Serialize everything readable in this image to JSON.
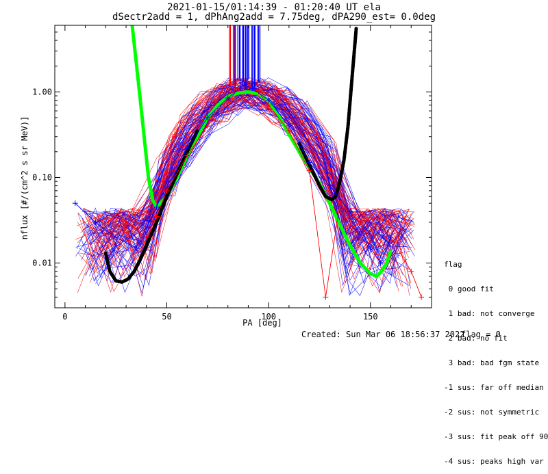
{
  "title": "2021-01-15/01:14:39 - 01:20:40 UT ela",
  "subtitle": "dSectr2add = 1, dPhAng2add = 7.75deg, dPA290_est=    0.0deg",
  "footer": {
    "created": "Created: Sun Mar 06 18:56:37 2022",
    "flag": "flag = 0"
  },
  "legend": {
    "title": "flag",
    "items": [
      " 0 good fit",
      " 1 bad: not converge",
      " 2 bad: no fit",
      " 3 bad: bad fgm state",
      "-1 sus: far off median",
      "-2 sus: not symmetric",
      "-3 sus: fit peak off 90",
      "-4 sus: peaks high var"
    ]
  },
  "colors": {
    "red": "#ff0000",
    "blue": "#0000ff",
    "green": "#00ff00",
    "black": "#000000"
  },
  "chart_data": {
    "type": "line",
    "xlabel": "PA [deg]",
    "ylabel": "nflux [#/(cm^2 s sr MeV)]",
    "xlim": [
      -5,
      180
    ],
    "ylim": [
      0.003,
      6
    ],
    "yscale": "log",
    "xticks": [
      0,
      50,
      100,
      150
    ],
    "xtick_labels": [
      "0",
      "50",
      "100",
      "150"
    ],
    "yticks": [
      0.01,
      0.1,
      1.0
    ],
    "ytick_labels": [
      "0.01",
      "0.10",
      "1.00"
    ],
    "series": [
      {
        "color": "green",
        "style": "thick dashed",
        "x": [
          33,
          35,
          37,
          39,
          41,
          43,
          45,
          50,
          55,
          60,
          65,
          70,
          75,
          80,
          85,
          90,
          95,
          100,
          105,
          110,
          115,
          120,
          125,
          130,
          135,
          140,
          145,
          150,
          153,
          155,
          158,
          160
        ],
        "y": [
          6.0,
          2.2,
          0.8,
          0.28,
          0.1,
          0.055,
          0.045,
          0.06,
          0.1,
          0.18,
          0.3,
          0.5,
          0.7,
          0.88,
          0.97,
          1.0,
          0.95,
          0.78,
          0.52,
          0.32,
          0.2,
          0.13,
          0.085,
          0.05,
          0.028,
          0.016,
          0.01,
          0.0075,
          0.007,
          0.0078,
          0.01,
          0.014
        ]
      },
      {
        "color": "black",
        "style": "thick dashed",
        "x": [
          20,
          22,
          25,
          28,
          31,
          34,
          37,
          40,
          45,
          50,
          55,
          60,
          65
        ],
        "y": [
          0.013,
          0.008,
          0.0062,
          0.006,
          0.0065,
          0.008,
          0.011,
          0.016,
          0.03,
          0.06,
          0.11,
          0.2,
          0.35
        ]
      },
      {
        "color": "black",
        "style": "thick dashed",
        "x": [
          115,
          120,
          125,
          128,
          131,
          133,
          135,
          137,
          139,
          141,
          143
        ],
        "y": [
          0.25,
          0.14,
          0.08,
          0.06,
          0.055,
          0.06,
          0.09,
          0.16,
          0.4,
          1.5,
          5.5
        ]
      },
      {
        "color": "red",
        "style": "thin crosses",
        "x": [
          20,
          30,
          40,
          45,
          50,
          60,
          70,
          80,
          85,
          90,
          95,
          100,
          110,
          120,
          128,
          135,
          145,
          155,
          160,
          170,
          175
        ],
        "y": [
          0.04,
          0.03,
          0.02,
          0.035,
          0.07,
          0.18,
          0.4,
          0.75,
          1.1,
          1.2,
          1.0,
          0.7,
          0.35,
          0.12,
          0.004,
          0.05,
          0.03,
          0.01,
          0.02,
          0.008,
          0.004
        ]
      },
      {
        "color": "blue",
        "style": "thin crosses",
        "x": [
          5,
          15,
          25,
          35,
          45,
          50,
          60,
          70,
          80,
          88,
          92,
          100,
          110,
          120,
          130,
          140,
          150,
          155,
          160
        ],
        "y": [
          0.05,
          0.03,
          0.02,
          0.015,
          0.045,
          0.09,
          0.22,
          0.5,
          0.85,
          1.2,
          1.1,
          0.8,
          0.4,
          0.15,
          0.08,
          0.04,
          0.015,
          0.01,
          0.02
        ]
      }
    ]
  }
}
